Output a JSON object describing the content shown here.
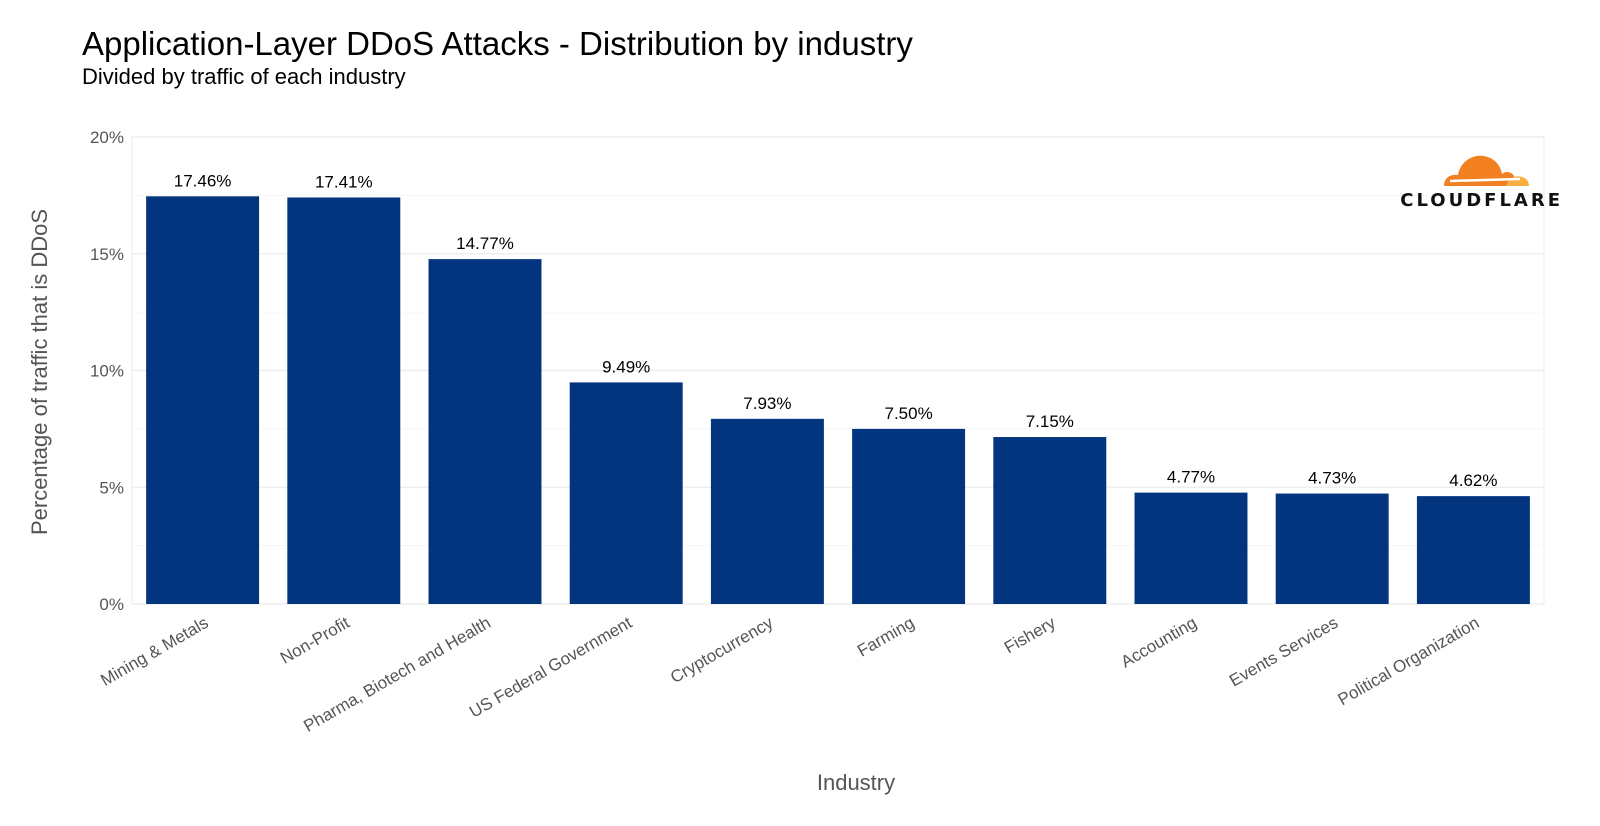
{
  "chart_data": {
    "type": "bar",
    "title": "Application-Layer DDoS Attacks - Distribution by industry",
    "subtitle": "Divided by traffic of each industry",
    "xlabel": "Industry",
    "ylabel": "Percentage of traffic that is DDoS",
    "categories": [
      "Mining & Metals",
      "Non-Profit",
      "Pharma, Biotech and Health",
      "US Federal Government",
      "Cryptocurrency",
      "Farming",
      "Fishery",
      "Accounting",
      "Events Services",
      "Political Organization"
    ],
    "values": [
      17.46,
      17.41,
      14.77,
      9.49,
      7.93,
      7.5,
      7.15,
      4.77,
      4.73,
      4.62
    ],
    "data_labels": [
      "17.46%",
      "17.41%",
      "14.77%",
      "9.49%",
      "7.93%",
      "7.50%",
      "7.15%",
      "4.77%",
      "4.73%",
      "4.62%"
    ],
    "yticks": [
      0,
      5,
      10,
      15,
      20
    ],
    "ytick_labels": [
      "0%",
      "5%",
      "10%",
      "15%",
      "20%"
    ],
    "ylim": [
      0,
      20
    ],
    "grid": true,
    "bar_color": "#03357f",
    "grid_color": "#ebebeb"
  },
  "branding": {
    "logo_text": "CLOUDFLARE",
    "logo_colors": [
      "#f38020",
      "#faae40"
    ]
  }
}
